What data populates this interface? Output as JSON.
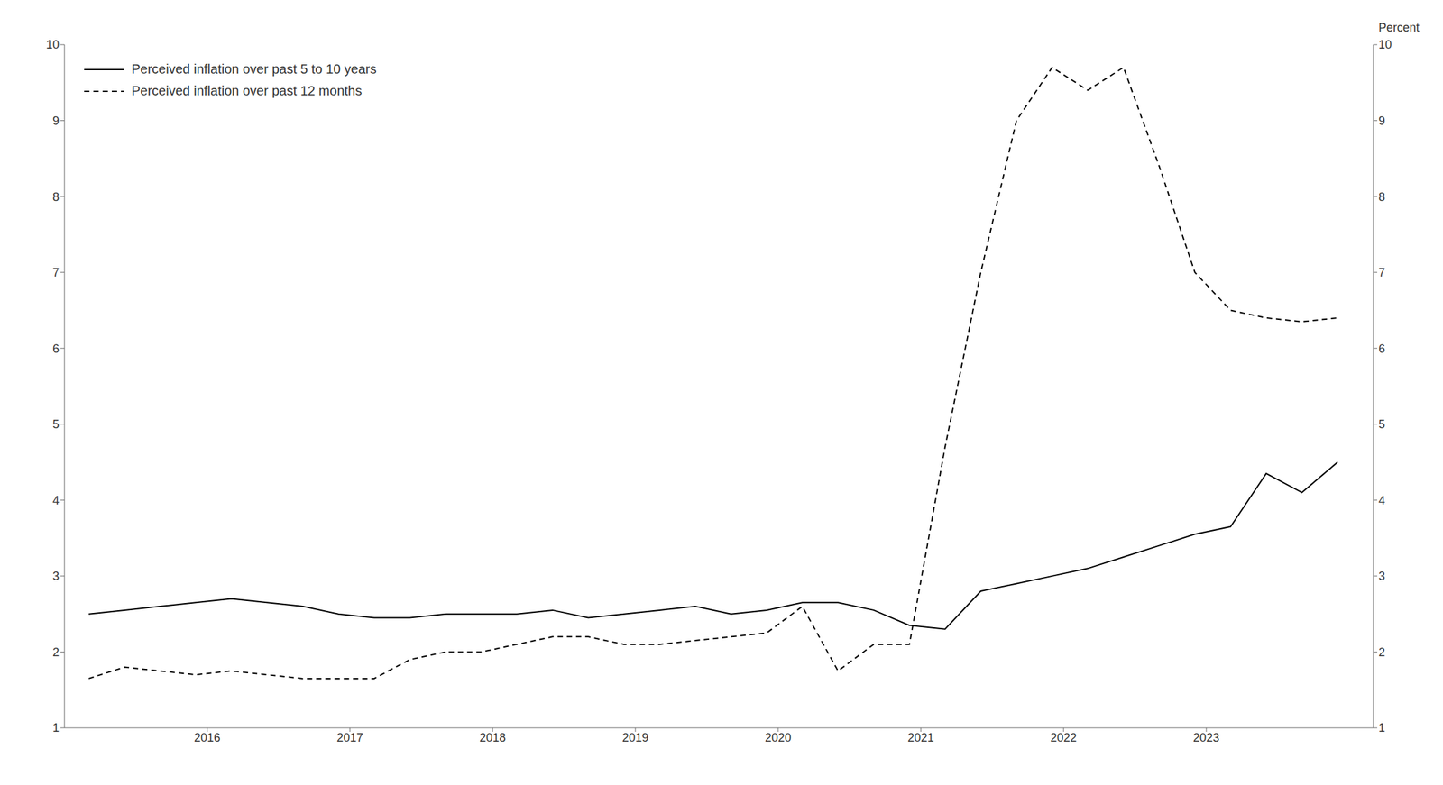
{
  "chart_data": {
    "type": "line",
    "y2label": "Percent",
    "x": [
      2015.17,
      2015.42,
      2015.67,
      2015.92,
      2016.17,
      2016.42,
      2016.67,
      2016.92,
      2017.17,
      2017.42,
      2017.67,
      2017.92,
      2018.17,
      2018.42,
      2018.67,
      2018.92,
      2019.17,
      2019.42,
      2019.67,
      2019.92,
      2020.17,
      2020.42,
      2020.67,
      2020.92,
      2021.17,
      2021.42,
      2021.67,
      2021.92,
      2022.17,
      2022.42,
      2022.67,
      2022.92,
      2023.17,
      2023.42,
      2023.67,
      2023.92
    ],
    "series": [
      {
        "name": "Perceived inflation over past 5 to 10 years",
        "color": "#000000",
        "line_style": "solid",
        "values": [
          2.5,
          2.55,
          2.6,
          2.65,
          2.7,
          2.65,
          2.6,
          2.5,
          2.45,
          2.45,
          2.5,
          2.5,
          2.5,
          2.55,
          2.45,
          2.5,
          2.55,
          2.6,
          2.5,
          2.55,
          2.65,
          2.65,
          2.55,
          2.35,
          2.3,
          2.8,
          2.9,
          3.0,
          3.1,
          3.25,
          3.4,
          3.55,
          3.65,
          4.35,
          4.1,
          4.5
        ]
      },
      {
        "name": "Perceived inflation over past 12 months",
        "color": "#000000",
        "line_style": "dashed",
        "values": [
          1.65,
          1.8,
          1.75,
          1.7,
          1.75,
          1.7,
          1.65,
          1.65,
          1.65,
          1.9,
          2.0,
          2.0,
          2.1,
          2.2,
          2.2,
          2.1,
          2.1,
          2.15,
          2.2,
          2.25,
          2.6,
          1.75,
          2.1,
          2.1,
          4.7,
          7.0,
          9.0,
          9.7,
          9.4,
          9.7,
          8.4,
          7.0,
          6.5,
          6.4,
          6.35,
          6.4
        ]
      }
    ],
    "xlim": [
      2015.0,
      2024.17
    ],
    "xticks": [
      2016,
      2017,
      2018,
      2019,
      2020,
      2021,
      2022,
      2023
    ],
    "ylim": [
      1,
      10
    ],
    "yticks": [
      1,
      2,
      3,
      4,
      5,
      6,
      7,
      8,
      9,
      10
    ],
    "y2lim": [
      1,
      10
    ],
    "y2ticks": [
      1,
      2,
      3,
      4,
      5,
      6,
      7,
      8,
      9,
      10
    ],
    "grid": false,
    "legend": "upper left"
  }
}
